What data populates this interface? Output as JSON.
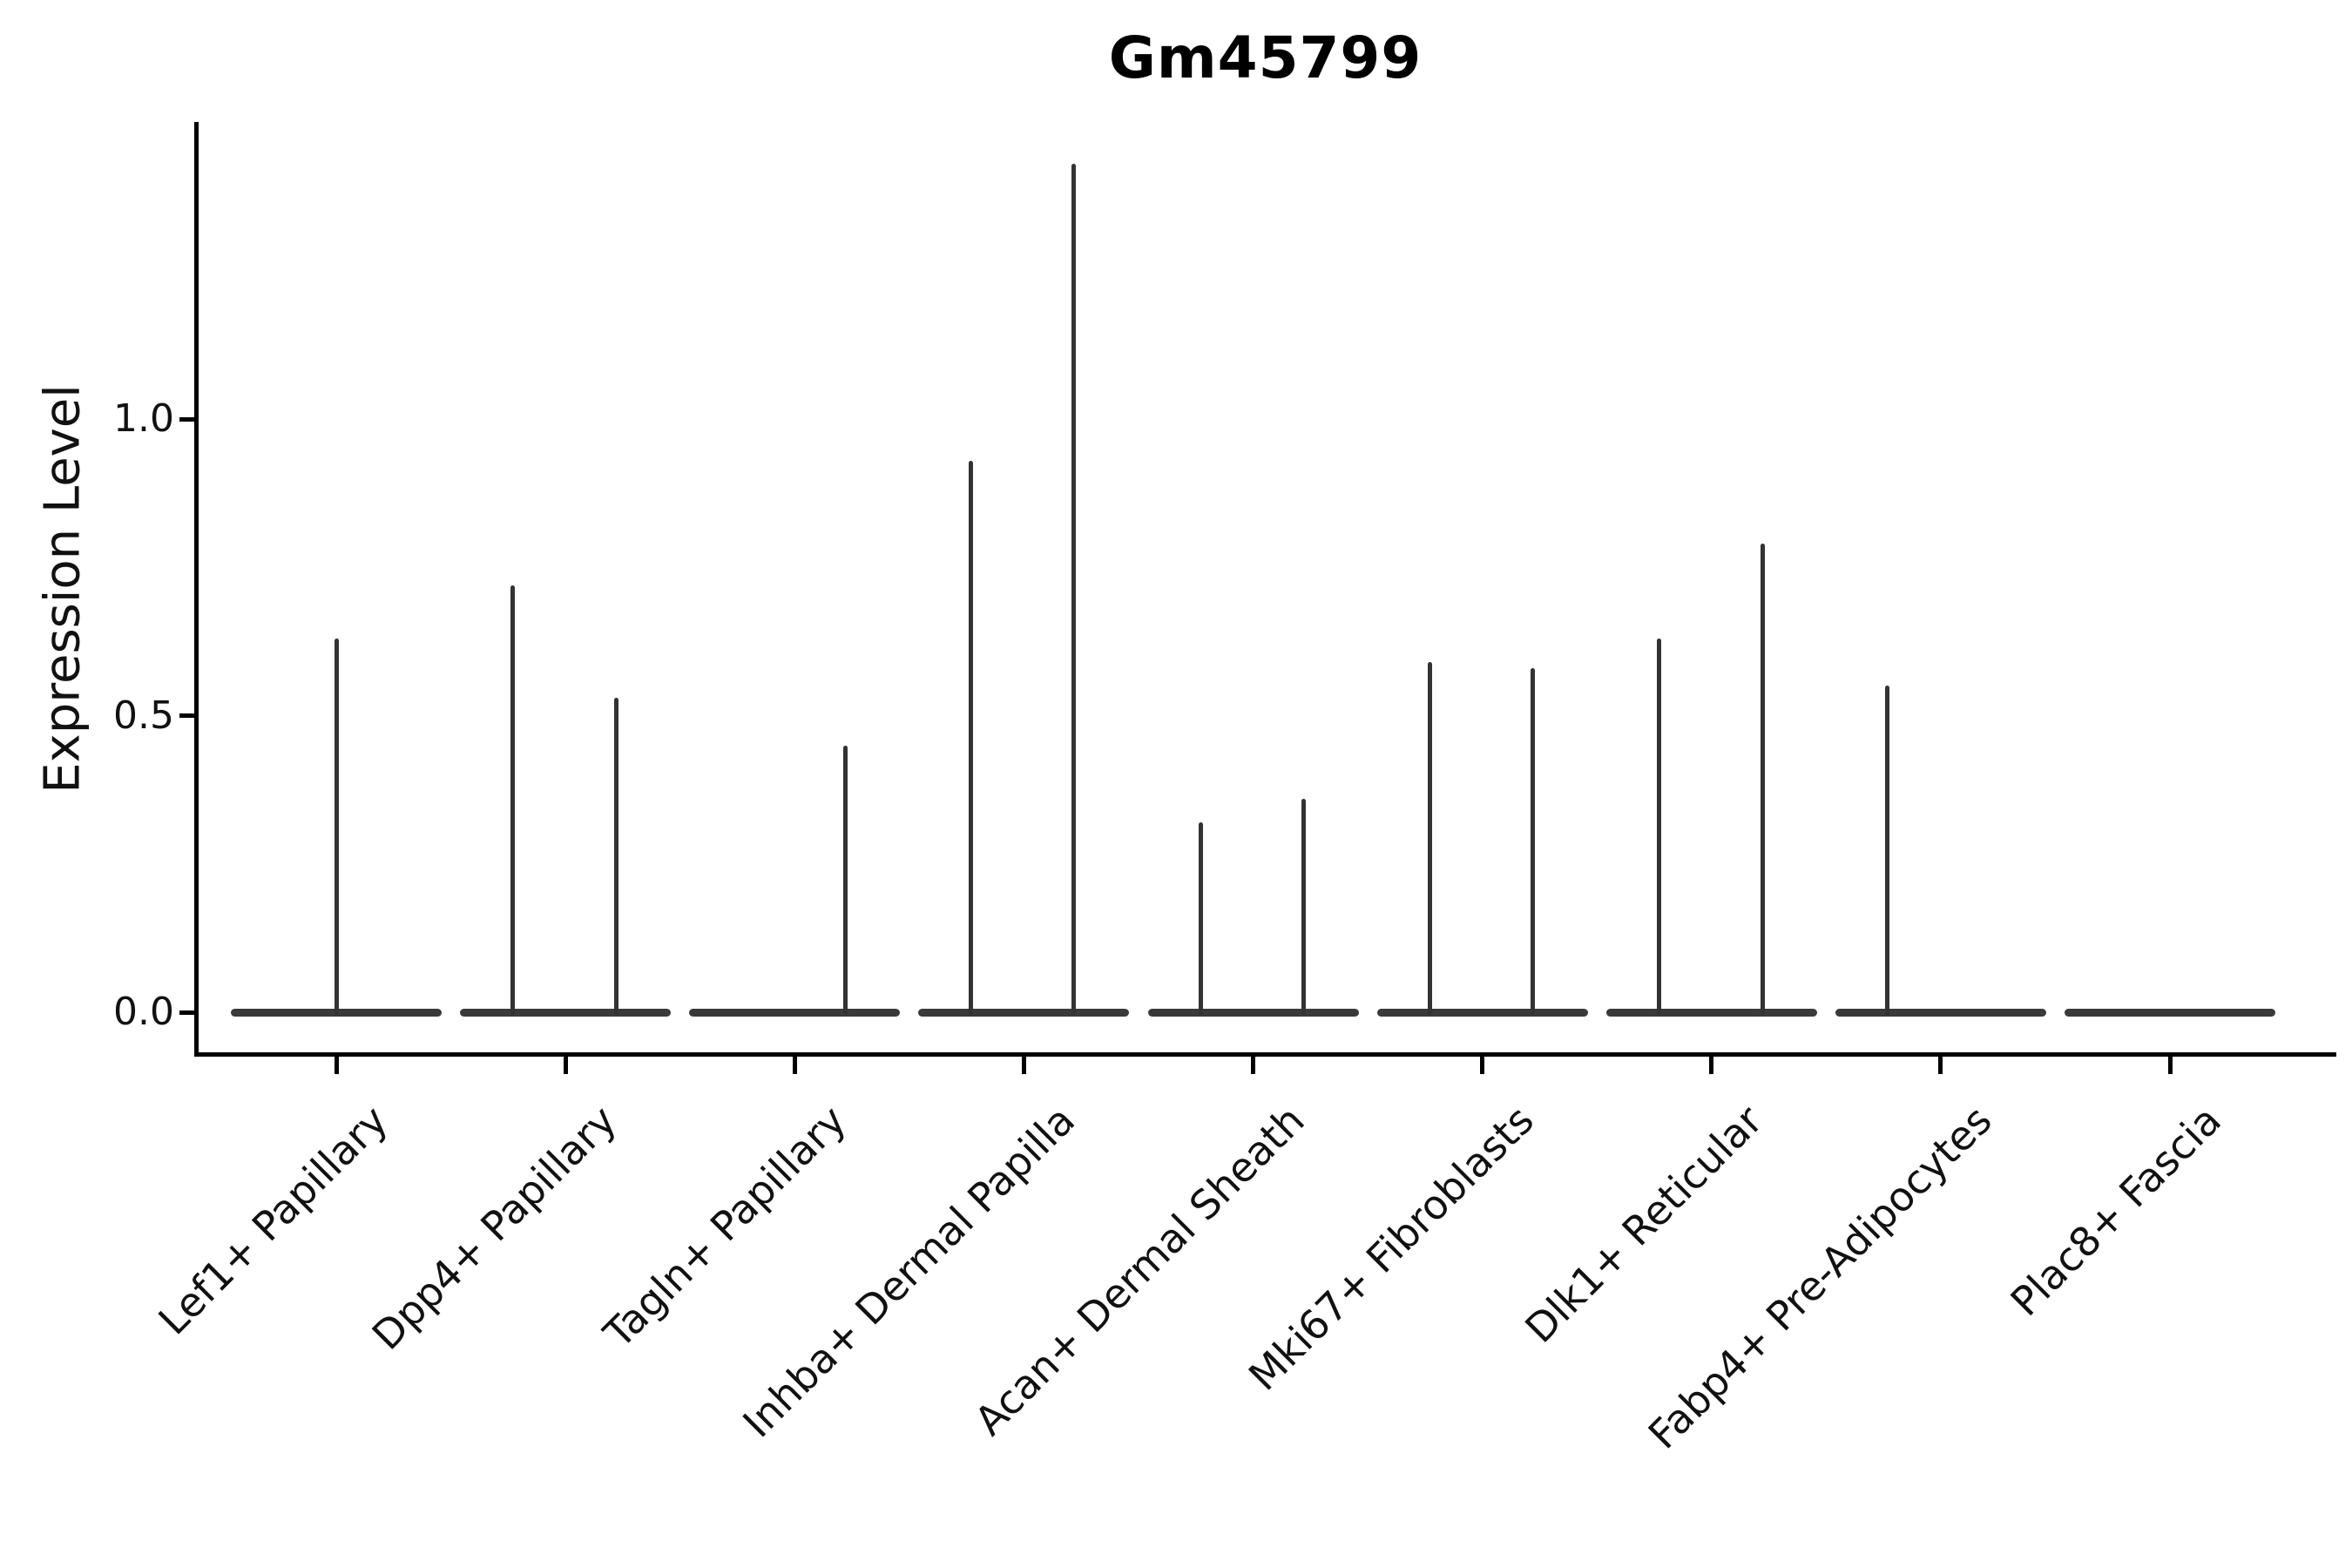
{
  "title": "Gm45799",
  "axes": {
    "ylabel": "Expression Level",
    "ytick_labels": [
      "0.0",
      "0.5",
      "1.0"
    ]
  },
  "colors": {
    "line": "#333333",
    "violin_fill": "#3a3a3a",
    "spine": "#000000",
    "text": "#111111",
    "background": "#ffffff"
  },
  "chart_data": {
    "type": "violin",
    "title": "Gm45799",
    "xlabel": "",
    "ylabel": "Expression Level",
    "ylim": [
      -0.07,
      1.5
    ],
    "yticks": [
      0.0,
      0.5,
      1.0
    ],
    "grid": false,
    "legend": "none",
    "description": "Single-gene violin plot; each cell type shows a flat density bar at expression 0 with thin vertical density spikes marking maximum expression of the few expressing cells.",
    "categories": [
      "Lef1+ Papillary",
      "Dpp4+ Papillary",
      "Tagln+ Papillary",
      "Inhba+ Dermal Papilla",
      "Acan+ Dermal Sheath",
      "Mki67+ Fibroblasts",
      "Dlk1+ Reticular",
      "Fabp4+ Pre-Adipocytes",
      "Plac8+ Fascia"
    ],
    "series": [
      {
        "category": "Lef1+ Papillary",
        "spikes": [
          {
            "dx": 0,
            "value": 0.63
          }
        ]
      },
      {
        "category": "Dpp4+ Papillary",
        "spikes": [
          {
            "dx": -61,
            "value": 0.72
          },
          {
            "dx": 58,
            "value": 0.53
          }
        ]
      },
      {
        "category": "Tagln+ Papillary",
        "spikes": [
          {
            "dx": 58,
            "value": 0.45
          }
        ]
      },
      {
        "category": "Inhba+ Dermal Papilla",
        "spikes": [
          {
            "dx": -61,
            "value": 0.93
          },
          {
            "dx": 57,
            "value": 1.43
          }
        ]
      },
      {
        "category": "Acan+ Dermal Sheath",
        "spikes": [
          {
            "dx": -60,
            "value": 0.32
          },
          {
            "dx": 58,
            "value": 0.36
          }
        ]
      },
      {
        "category": "Mki67+ Fibroblasts",
        "spikes": [
          {
            "dx": -60,
            "value": 0.59
          },
          {
            "dx": 58,
            "value": 0.58
          }
        ]
      },
      {
        "category": "Dlk1+ Reticular",
        "spikes": [
          {
            "dx": -60,
            "value": 0.63
          },
          {
            "dx": 59,
            "value": 0.79
          }
        ]
      },
      {
        "category": "Fabp4+ Pre-Adipocytes",
        "spikes": [
          {
            "dx": -61,
            "value": 0.55
          }
        ]
      },
      {
        "category": "Plac8+ Fascia",
        "spikes": []
      }
    ]
  }
}
